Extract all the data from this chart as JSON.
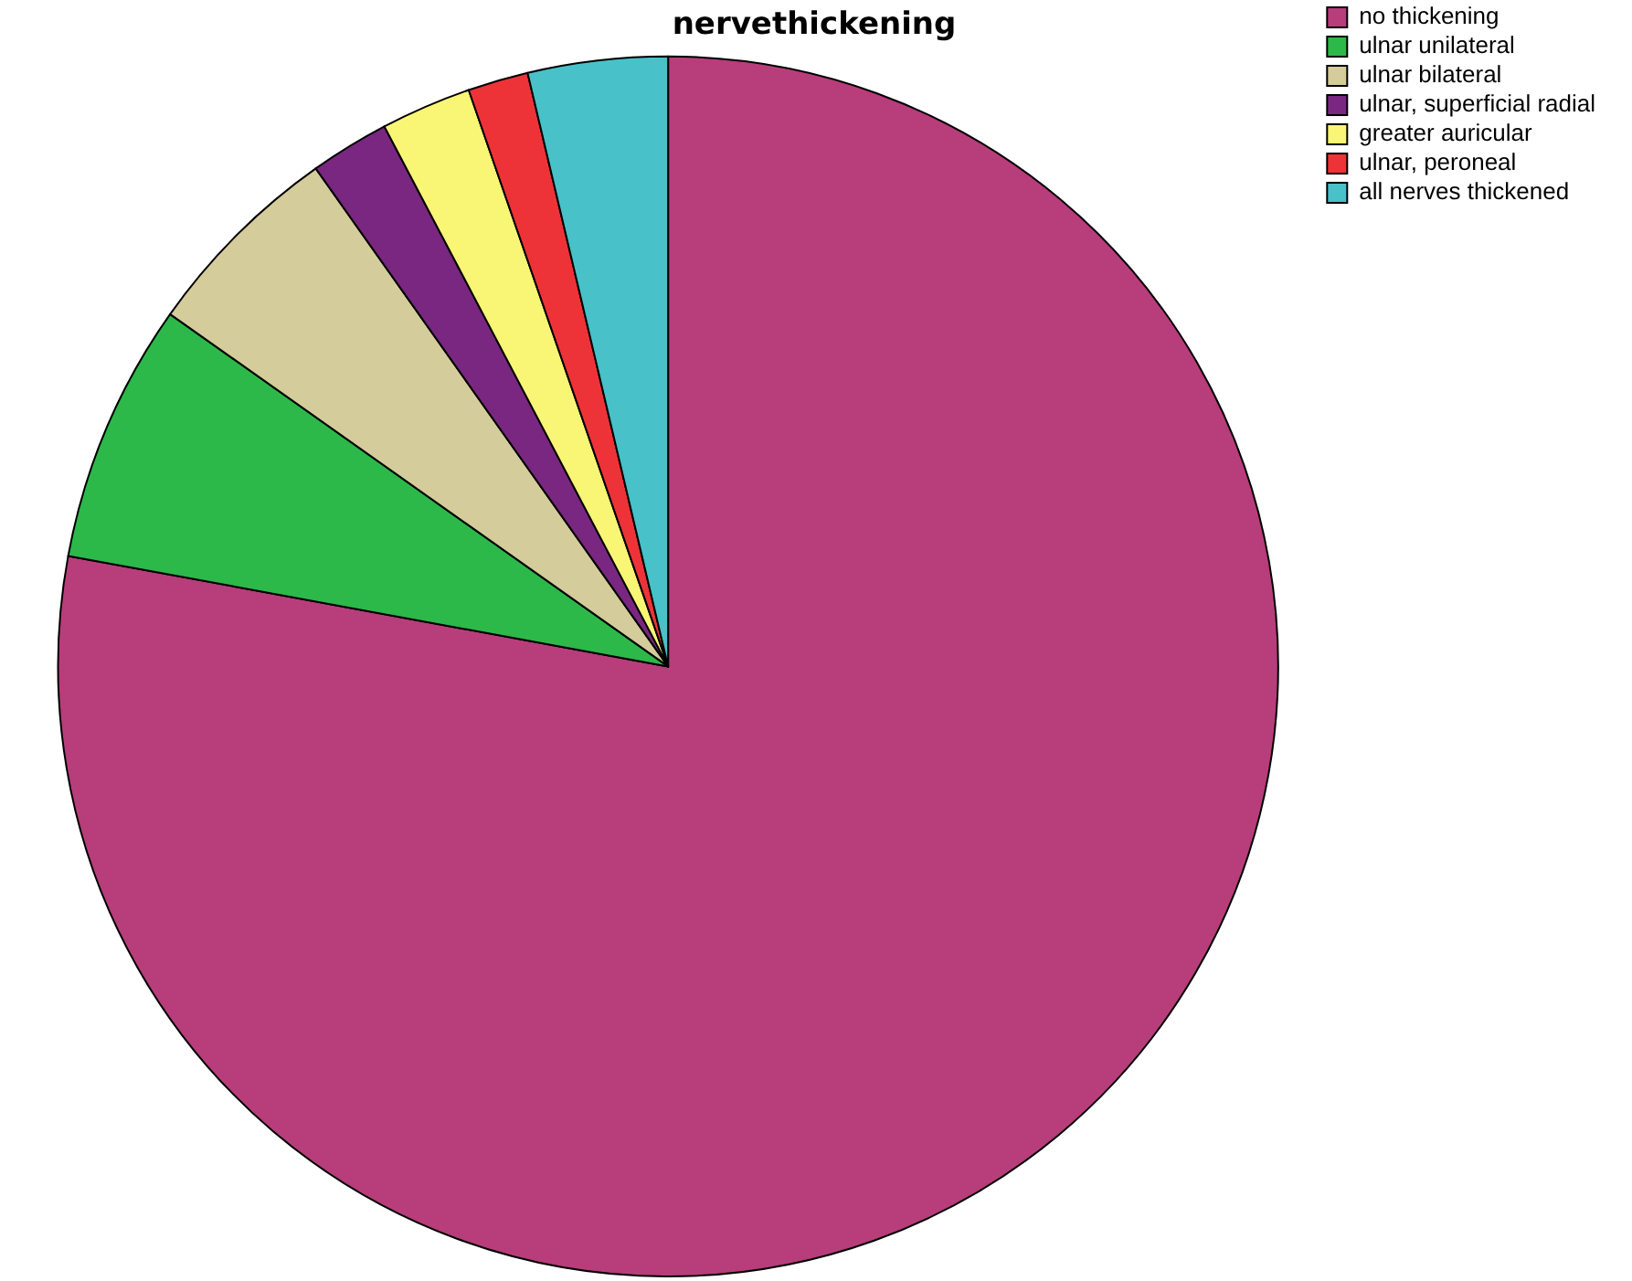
{
  "chart_data": {
    "type": "pie",
    "title": "nervethickening",
    "categories": [
      "no thickening",
      "ulnar unilateral",
      "ulnar bilateral",
      "ulnar, superficial radial",
      "greater auricular",
      "ulnar, peroneal",
      "all nerves thickened"
    ],
    "values": [
      77.9,
      6.9,
      5.4,
      2.1,
      2.4,
      1.6,
      3.7
    ],
    "colors": [
      "#b83d7b",
      "#2db84a",
      "#d4cc9a",
      "#7a2781",
      "#f8f674",
      "#ee3338",
      "#48c1c8"
    ],
    "legend": "top right"
  }
}
